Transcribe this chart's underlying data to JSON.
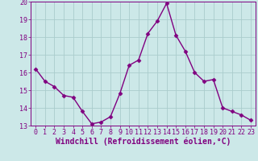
{
  "x": [
    0,
    1,
    2,
    3,
    4,
    5,
    6,
    7,
    8,
    9,
    10,
    11,
    12,
    13,
    14,
    15,
    16,
    17,
    18,
    19,
    20,
    21,
    22,
    23
  ],
  "y": [
    16.2,
    15.5,
    15.2,
    14.7,
    14.6,
    13.8,
    13.1,
    13.2,
    13.5,
    14.8,
    16.4,
    16.7,
    18.2,
    18.9,
    19.9,
    18.1,
    17.2,
    16.0,
    15.5,
    15.6,
    14.0,
    13.8,
    13.6,
    13.3
  ],
  "line_color": "#800080",
  "marker": "D",
  "marker_size": 2.5,
  "bg_color": "#cce8e8",
  "grid_color": "#aacccc",
  "xlabel": "Windchill (Refroidissement éolien,°C)",
  "xlabel_fontsize": 7,
  "ylim": [
    13,
    20
  ],
  "xlim": [
    -0.5,
    23.5
  ],
  "yticks": [
    13,
    14,
    15,
    16,
    17,
    18,
    19,
    20
  ],
  "xticks": [
    0,
    1,
    2,
    3,
    4,
    5,
    6,
    7,
    8,
    9,
    10,
    11,
    12,
    13,
    14,
    15,
    16,
    17,
    18,
    19,
    20,
    21,
    22,
    23
  ],
  "tick_fontsize": 6,
  "linewidth": 1.0
}
